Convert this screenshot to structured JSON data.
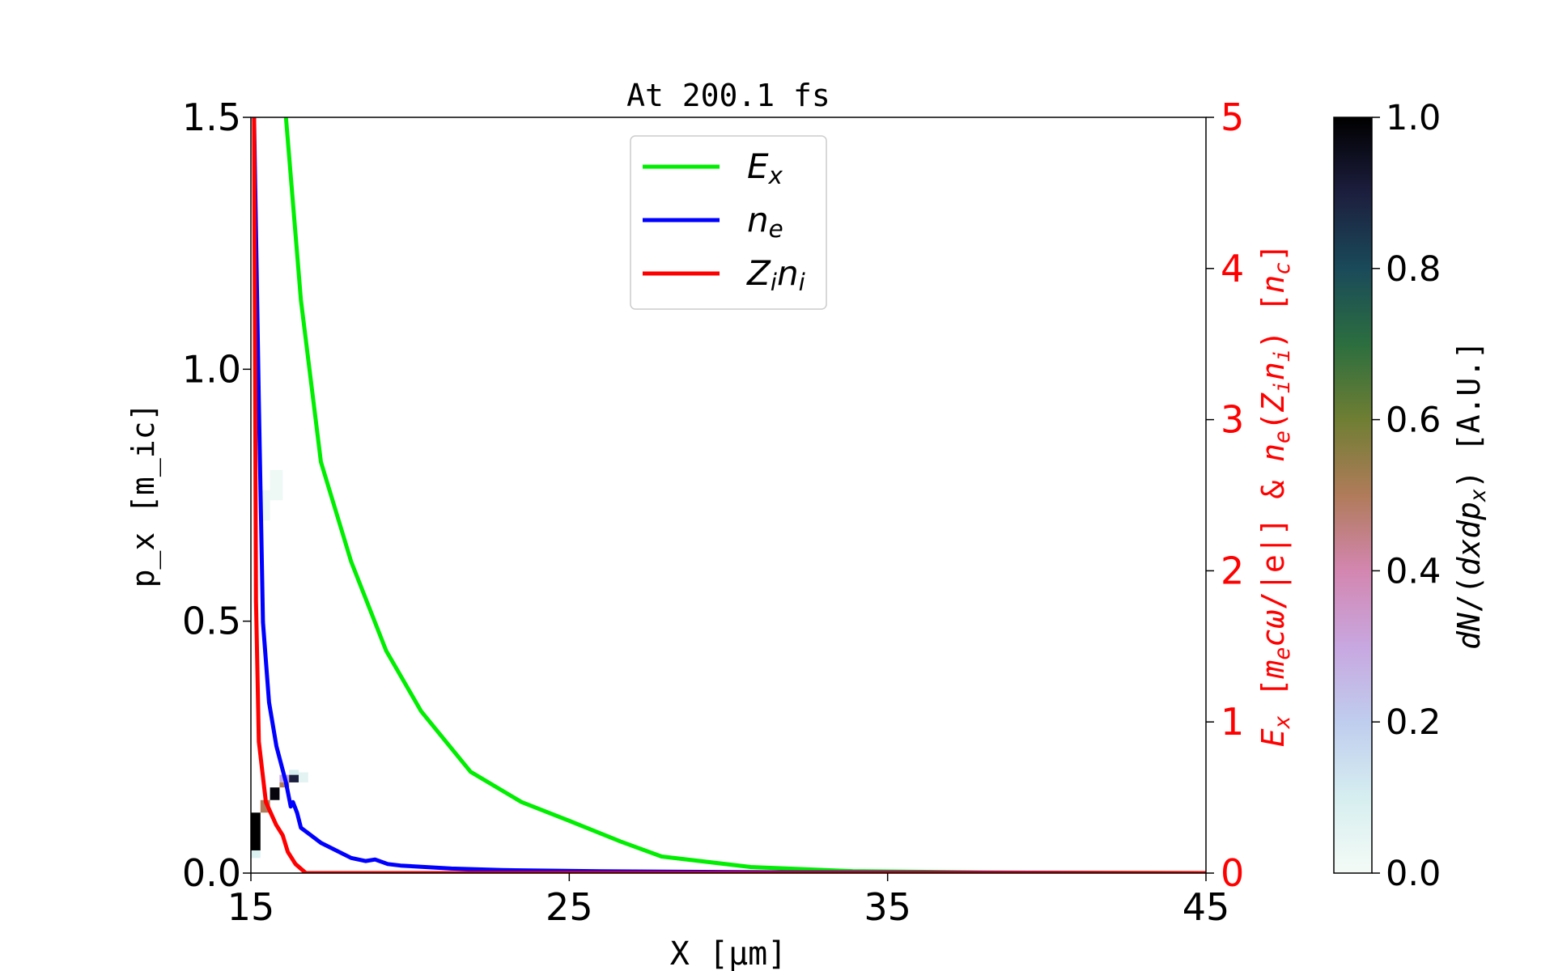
{
  "chart_data": {
    "type": "line",
    "title": "At 200.1 fs",
    "xlabel": "X [μm]",
    "xlabel_parts": [
      {
        "t": "X  ["
      },
      {
        "t": "μm",
        "i": true
      },
      {
        "t": "]"
      }
    ],
    "ylabel_left": "p_x [m_ic]",
    "ylabel_left_parts": [
      {
        "t": "p",
        "i": true
      },
      {
        "t": "x",
        "i": true,
        "sub": true
      },
      {
        "t": "  [m"
      },
      {
        "t": "i",
        "sub": true
      },
      {
        "t": "c]"
      }
    ],
    "ylabel_right": "E_x [m_e cω/|e|] & n_e(Z_i n_i) [n_c]",
    "ylabel_right_parts": [
      {
        "t": "E",
        "i": true
      },
      {
        "t": "x",
        "i": true,
        "sub": true
      },
      {
        "t": "  ["
      },
      {
        "t": "m",
        "i": true
      },
      {
        "t": "e",
        "i": true,
        "sub": true
      },
      {
        "t": "cω",
        "i": true
      },
      {
        "t": "/|e|]  &  "
      },
      {
        "t": "n",
        "i": true
      },
      {
        "t": "e",
        "i": true,
        "sub": true
      },
      {
        "t": "("
      },
      {
        "t": "Z",
        "i": true
      },
      {
        "t": "i",
        "i": true,
        "sub": true
      },
      {
        "t": "n",
        "i": true
      },
      {
        "t": "i",
        "i": true,
        "sub": true
      },
      {
        "t": ")  ["
      },
      {
        "t": "n",
        "i": true
      },
      {
        "t": "c",
        "i": true,
        "sub": true
      },
      {
        "t": "]"
      }
    ],
    "colorbar_label": "dN/(dxdp_x) [A.U.]",
    "colorbar_label_parts": [
      {
        "t": "dN",
        "i": true
      },
      {
        "t": "/("
      },
      {
        "t": "dxdp",
        "i": true
      },
      {
        "t": "x",
        "i": true,
        "sub": true
      },
      {
        "t": ")  [A.U.]"
      }
    ],
    "xlim": [
      15,
      45
    ],
    "ylim_left": [
      0,
      1.5
    ],
    "ylim_right": [
      0,
      5
    ],
    "clim": [
      0,
      1
    ],
    "xticks": [
      "15",
      "25",
      "35",
      "45"
    ],
    "xtick_values": [
      15,
      25,
      35,
      45
    ],
    "yticks_left": [
      "0.0",
      "0.5",
      "1.0",
      "1.5"
    ],
    "ytick_left_values": [
      0,
      0.5,
      1.0,
      1.5
    ],
    "yticks_right": [
      "0",
      "1",
      "2",
      "3",
      "4",
      "5"
    ],
    "ytick_right_values": [
      0,
      1,
      2,
      3,
      4,
      5
    ],
    "cbar_ticks": [
      "0.0",
      "0.2",
      "0.4",
      "0.6",
      "0.8",
      "1.0"
    ],
    "cbar_tick_values": [
      0,
      0.2,
      0.4,
      0.6,
      0.8,
      1.0
    ],
    "grid": false,
    "legend_placement": "upper-center",
    "colors": {
      "right_axis": "#ff0000",
      "E_x": "#00ee00",
      "n_e": "#0000ff",
      "Z_i n_i": "#ff0000"
    },
    "colormap": "cubehelix (reversed)",
    "series": [
      {
        "name": "E_x",
        "legend_parts": [
          {
            "t": "E",
            "i": true
          },
          {
            "t": "x",
            "i": true,
            "sub": true
          }
        ],
        "color": "#00ee00",
        "axis": "right",
        "x": [
          16.1,
          16.57,
          17.2,
          18.15,
          19.25,
          20.35,
          21.9,
          23.5,
          25.07,
          26.6,
          27.9,
          30.7,
          33.9,
          38,
          45
        ],
        "y": [
          5.0,
          3.79,
          2.72,
          2.06,
          1.47,
          1.07,
          0.67,
          0.47,
          0.34,
          0.21,
          0.11,
          0.04,
          0.013,
          0.004,
          0.0
        ]
      },
      {
        "name": "n_e",
        "legend_parts": [
          {
            "t": "n",
            "i": true
          },
          {
            "t": "e",
            "i": true,
            "sub": true
          }
        ],
        "color": "#0000ff",
        "axis": "right",
        "x": [
          15.1,
          15.25,
          15.38,
          15.57,
          15.8,
          16.1,
          16.25,
          16.32,
          16.45,
          16.57,
          17.2,
          18.15,
          18.6,
          18.9,
          19.3,
          19.7,
          21.3,
          22.9,
          26,
          32.3,
          45
        ],
        "y": [
          5.0,
          3.12,
          1.66,
          1.13,
          0.84,
          0.6,
          0.44,
          0.47,
          0.4,
          0.3,
          0.2,
          0.1,
          0.08,
          0.09,
          0.06,
          0.05,
          0.03,
          0.02,
          0.012,
          0.005,
          0.0
        ]
      },
      {
        "name": "Z_i n_i",
        "legend_parts": [
          {
            "t": "Z",
            "i": true
          },
          {
            "t": "i",
            "i": true,
            "sub": true
          },
          {
            "t": "n",
            "i": true
          },
          {
            "t": "i",
            "i": true,
            "sub": true
          }
        ],
        "color": "#ff0000",
        "axis": "right",
        "x": [
          15.1,
          15.16,
          15.25,
          15.47,
          15.79,
          16.0,
          16.16,
          16.4,
          16.73,
          45
        ],
        "y": [
          5.0,
          1.8,
          0.87,
          0.47,
          0.32,
          0.25,
          0.14,
          0.06,
          0.0,
          0.0
        ]
      }
    ],
    "heatmap_cells": [
      {
        "x": [
          15.0,
          15.3
        ],
        "p": [
          0.045,
          0.12
        ],
        "v": 1.0
      },
      {
        "x": [
          15.0,
          15.3
        ],
        "p": [
          0.03,
          0.045
        ],
        "v": 0.08
      },
      {
        "x": [
          15.3,
          15.6
        ],
        "p": [
          0.12,
          0.145
        ],
        "v": 0.5
      },
      {
        "x": [
          15.6,
          15.9
        ],
        "p": [
          0.145,
          0.17
        ],
        "v": 0.98
      },
      {
        "x": [
          15.9,
          16.2
        ],
        "p": [
          0.17,
          0.18
        ],
        "v": 0.5
      },
      {
        "x": [
          15.9,
          16.2
        ],
        "p": [
          0.18,
          0.195
        ],
        "v": 0.3
      },
      {
        "x": [
          16.2,
          16.5
        ],
        "p": [
          0.18,
          0.195
        ],
        "v": 0.9
      },
      {
        "x": [
          16.2,
          16.5
        ],
        "p": [
          0.195,
          0.205
        ],
        "v": 0.1
      },
      {
        "x": [
          16.5,
          16.8
        ],
        "p": [
          0.18,
          0.2
        ],
        "v": 0.06
      },
      {
        "x": [
          15.3,
          15.6
        ],
        "p": [
          0.7,
          0.76
        ],
        "v": 0.03
      },
      {
        "x": [
          15.6,
          16.0
        ],
        "p": [
          0.74,
          0.8
        ],
        "v": 0.02
      }
    ]
  }
}
